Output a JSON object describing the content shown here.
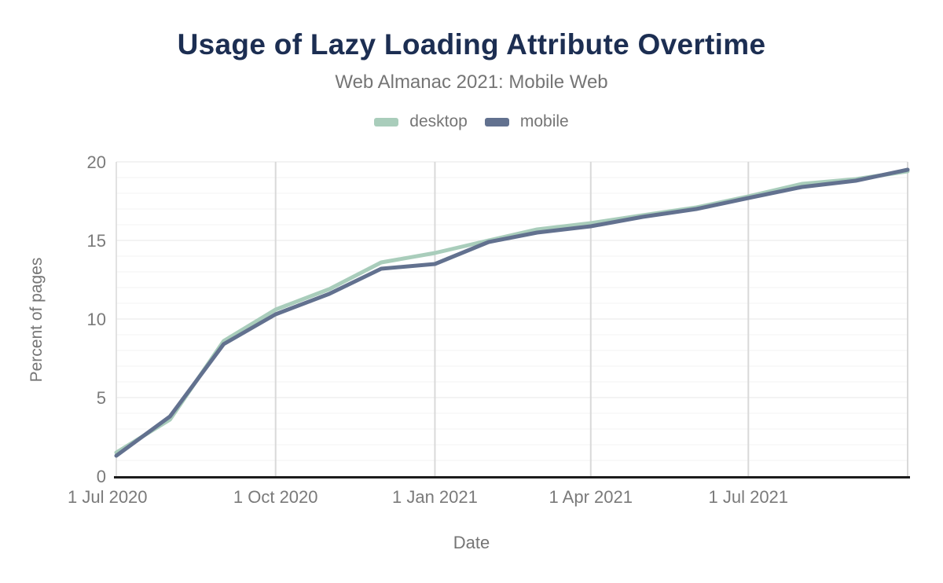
{
  "theme": {
    "background": "#ffffff",
    "title_color": "#1c2e52",
    "subtitle_color": "#757575",
    "tick_label_color": "#7a7a7a",
    "axis_title_color": "#757575",
    "grid_minor_color": "#f3f3f3",
    "grid_major_color": "#e7e7e7",
    "grid_vertical_color": "#d9d9d9",
    "axis_line_color": "#1c1c1c"
  },
  "chart_data": {
    "type": "line",
    "title": "Usage of Lazy Loading Attribute Overtime",
    "subtitle": "Web Almanac 2021: Mobile Web",
    "xlabel": "Date",
    "ylabel": "Percent of pages",
    "ylim": [
      0,
      20
    ],
    "y_ticks": [
      0,
      5,
      10,
      15,
      20
    ],
    "y_minor_grid_step": 1,
    "grid": true,
    "legend_position": "top",
    "categories": [
      "1 Jul 2020",
      "1 Aug 2020",
      "1 Sep 2020",
      "1 Oct 2020",
      "1 Nov 2020",
      "1 Dec 2020",
      "1 Jan 2021",
      "1 Feb 2021",
      "1 Mar 2021",
      "1 Apr 2021",
      "1 May 2021",
      "1 Jun 2021",
      "1 Jul 2021",
      "1 Aug 2021",
      "1 Sep 2021",
      "1 Oct 2021"
    ],
    "x_day_offsets": [
      0,
      31,
      62,
      92,
      123,
      153,
      184,
      215,
      243,
      274,
      304,
      335,
      365,
      396,
      427,
      457
    ],
    "x_ticks": [
      {
        "label": "1 Jul 2020",
        "day": 0
      },
      {
        "label": "1 Oct 2020",
        "day": 92
      },
      {
        "label": "1 Jan 2021",
        "day": 184
      },
      {
        "label": "1 Apr 2021",
        "day": 274
      },
      {
        "label": "1 Jul 2021",
        "day": 365
      },
      {
        "label": "",
        "day": 457
      }
    ],
    "series": [
      {
        "name": "desktop",
        "color": "#a9cdbb",
        "values": [
          1.5,
          3.6,
          8.6,
          10.6,
          11.9,
          13.6,
          14.2,
          15.0,
          15.7,
          16.1,
          16.6,
          17.1,
          17.8,
          18.6,
          18.9,
          19.4
        ]
      },
      {
        "name": "mobile",
        "color": "#62718f",
        "values": [
          1.3,
          3.8,
          8.4,
          10.3,
          11.6,
          13.2,
          13.5,
          14.9,
          15.5,
          15.9,
          16.5,
          17.0,
          17.7,
          18.4,
          18.8,
          19.5
        ]
      }
    ]
  }
}
